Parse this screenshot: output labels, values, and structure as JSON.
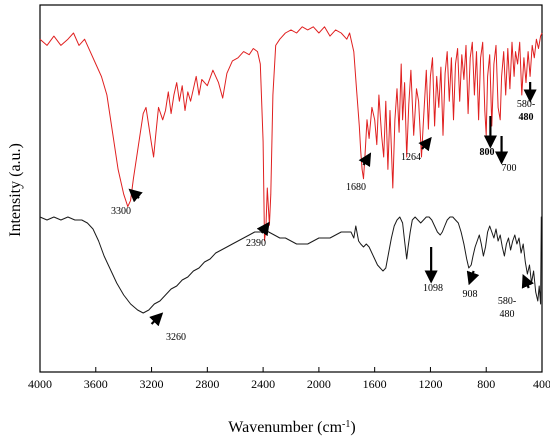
{
  "chart_data": {
    "type": "line",
    "title": "",
    "xlabel": "Wavenumber (cm",
    "xlabel_sup": "-1",
    "xlabel_close": ")",
    "ylabel": "Intensity (a.u.)",
    "xlim": [
      4000,
      400
    ],
    "x_reversed": true,
    "y_ticks_shown": false,
    "grid": false,
    "x_ticks": [
      4000,
      3600,
      3200,
      2800,
      2400,
      2000,
      1600,
      1200,
      800,
      400
    ],
    "x_tick_labels": [
      "4000",
      "3600",
      "3200",
      "2800",
      "2400",
      "2000",
      "1600",
      "1200",
      "800",
      "400"
    ],
    "series": [
      {
        "color": "#e02020",
        "points": [
          [
            4000,
            0.78
          ],
          [
            3950,
            0.76
          ],
          [
            3900,
            0.79
          ],
          [
            3850,
            0.76
          ],
          [
            3800,
            0.78
          ],
          [
            3760,
            0.8
          ],
          [
            3720,
            0.76
          ],
          [
            3680,
            0.78
          ],
          [
            3640,
            0.74
          ],
          [
            3600,
            0.7
          ],
          [
            3560,
            0.66
          ],
          [
            3520,
            0.6
          ],
          [
            3480,
            0.48
          ],
          [
            3440,
            0.36
          ],
          [
            3400,
            0.28
          ],
          [
            3370,
            0.24
          ],
          [
            3350,
            0.26
          ],
          [
            3330,
            0.33
          ],
          [
            3300,
            0.42
          ],
          [
            3280,
            0.48
          ],
          [
            3260,
            0.54
          ],
          [
            3240,
            0.56
          ],
          [
            3220,
            0.5
          ],
          [
            3200,
            0.44
          ],
          [
            3185,
            0.4
          ],
          [
            3170,
            0.47
          ],
          [
            3150,
            0.56
          ],
          [
            3120,
            0.52
          ],
          [
            3100,
            0.55
          ],
          [
            3080,
            0.61
          ],
          [
            3060,
            0.54
          ],
          [
            3040,
            0.6
          ],
          [
            3020,
            0.64
          ],
          [
            3000,
            0.58
          ],
          [
            2980,
            0.63
          ],
          [
            2960,
            0.55
          ],
          [
            2940,
            0.61
          ],
          [
            2920,
            0.58
          ],
          [
            2900,
            0.62
          ],
          [
            2880,
            0.66
          ],
          [
            2860,
            0.6
          ],
          [
            2840,
            0.65
          ],
          [
            2800,
            0.63
          ],
          [
            2760,
            0.68
          ],
          [
            2720,
            0.64
          ],
          [
            2690,
            0.59
          ],
          [
            2660,
            0.67
          ],
          [
            2620,
            0.71
          ],
          [
            2580,
            0.72
          ],
          [
            2540,
            0.74
          ],
          [
            2500,
            0.73
          ],
          [
            2470,
            0.75
          ],
          [
            2440,
            0.74
          ],
          [
            2420,
            0.7
          ],
          [
            2400,
            0.45
          ],
          [
            2390,
            0.13
          ],
          [
            2380,
            0.17
          ],
          [
            2370,
            0.3
          ],
          [
            2355,
            0.18
          ],
          [
            2345,
            0.28
          ],
          [
            2330,
            0.6
          ],
          [
            2310,
            0.76
          ],
          [
            2280,
            0.78
          ],
          [
            2240,
            0.8
          ],
          [
            2200,
            0.81
          ],
          [
            2160,
            0.8
          ],
          [
            2120,
            0.82
          ],
          [
            2080,
            0.81
          ],
          [
            2040,
            0.82
          ],
          [
            2000,
            0.8
          ],
          [
            1960,
            0.82
          ],
          [
            1920,
            0.79
          ],
          [
            1880,
            0.81
          ],
          [
            1840,
            0.8
          ],
          [
            1800,
            0.78
          ],
          [
            1780,
            0.8
          ],
          [
            1750,
            0.74
          ],
          [
            1730,
            0.62
          ],
          [
            1710,
            0.5
          ],
          [
            1700,
            0.42
          ],
          [
            1690,
            0.36
          ],
          [
            1680,
            0.33
          ],
          [
            1670,
            0.4
          ],
          [
            1655,
            0.52
          ],
          [
            1640,
            0.46
          ],
          [
            1620,
            0.56
          ],
          [
            1600,
            0.52
          ],
          [
            1585,
            0.44
          ],
          [
            1570,
            0.6
          ],
          [
            1550,
            0.47
          ],
          [
            1535,
            0.4
          ],
          [
            1520,
            0.58
          ],
          [
            1505,
            0.36
          ],
          [
            1490,
            0.55
          ],
          [
            1470,
            0.3
          ],
          [
            1455,
            0.52
          ],
          [
            1440,
            0.62
          ],
          [
            1425,
            0.48
          ],
          [
            1410,
            0.7
          ],
          [
            1400,
            0.52
          ],
          [
            1385,
            0.64
          ],
          [
            1370,
            0.4
          ],
          [
            1355,
            0.57
          ],
          [
            1340,
            0.68
          ],
          [
            1320,
            0.47
          ],
          [
            1300,
            0.62
          ],
          [
            1285,
            0.58
          ],
          [
            1264,
            0.4
          ],
          [
            1250,
            0.52
          ],
          [
            1230,
            0.68
          ],
          [
            1215,
            0.49
          ],
          [
            1200,
            0.66
          ],
          [
            1185,
            0.72
          ],
          [
            1170,
            0.5
          ],
          [
            1155,
            0.66
          ],
          [
            1140,
            0.56
          ],
          [
            1125,
            0.69
          ],
          [
            1110,
            0.47
          ],
          [
            1095,
            0.67
          ],
          [
            1080,
            0.74
          ],
          [
            1065,
            0.58
          ],
          [
            1050,
            0.72
          ],
          [
            1035,
            0.52
          ],
          [
            1020,
            0.7
          ],
          [
            1005,
            0.75
          ],
          [
            990,
            0.58
          ],
          [
            975,
            0.73
          ],
          [
            960,
            0.65
          ],
          [
            945,
            0.76
          ],
          [
            930,
            0.54
          ],
          [
            915,
            0.72
          ],
          [
            900,
            0.77
          ],
          [
            885,
            0.6
          ],
          [
            870,
            0.74
          ],
          [
            855,
            0.52
          ],
          [
            840,
            0.72
          ],
          [
            825,
            0.77
          ],
          [
            810,
            0.55
          ],
          [
            800,
            0.47
          ],
          [
            790,
            0.66
          ],
          [
            775,
            0.73
          ],
          [
            760,
            0.5
          ],
          [
            745,
            0.7
          ],
          [
            730,
            0.76
          ],
          [
            715,
            0.56
          ],
          [
            700,
            0.52
          ],
          [
            690,
            0.66
          ],
          [
            675,
            0.74
          ],
          [
            660,
            0.6
          ],
          [
            645,
            0.75
          ],
          [
            630,
            0.62
          ],
          [
            615,
            0.77
          ],
          [
            600,
            0.66
          ],
          [
            590,
            0.74
          ],
          [
            575,
            0.7
          ],
          [
            560,
            0.77
          ],
          [
            545,
            0.6
          ],
          [
            530,
            0.72
          ],
          [
            515,
            0.64
          ],
          [
            500,
            0.74
          ],
          [
            485,
            0.66
          ],
          [
            470,
            0.76
          ],
          [
            455,
            0.72
          ],
          [
            440,
            0.78
          ],
          [
            425,
            0.75
          ],
          [
            410,
            0.79
          ],
          [
            400,
            0.8
          ]
        ]
      },
      {
        "color": "#1a1a1a",
        "points": [
          [
            4000,
            0.05
          ],
          [
            3950,
            0.04
          ],
          [
            3900,
            0.05
          ],
          [
            3850,
            0.04
          ],
          [
            3800,
            0.05
          ],
          [
            3750,
            0.04
          ],
          [
            3700,
            0.04
          ],
          [
            3660,
            0.03
          ],
          [
            3620,
            0.01
          ],
          [
            3580,
            -0.03
          ],
          [
            3540,
            -0.08
          ],
          [
            3500,
            -0.12
          ],
          [
            3450,
            -0.17
          ],
          [
            3400,
            -0.21
          ],
          [
            3350,
            -0.24
          ],
          [
            3300,
            -0.26
          ],
          [
            3260,
            -0.27
          ],
          [
            3220,
            -0.26
          ],
          [
            3180,
            -0.24
          ],
          [
            3140,
            -0.23
          ],
          [
            3100,
            -0.21
          ],
          [
            3060,
            -0.19
          ],
          [
            3020,
            -0.18
          ],
          [
            2980,
            -0.16
          ],
          [
            2940,
            -0.15
          ],
          [
            2900,
            -0.13
          ],
          [
            2860,
            -0.12
          ],
          [
            2820,
            -0.1
          ],
          [
            2780,
            -0.09
          ],
          [
            2740,
            -0.07
          ],
          [
            2700,
            -0.06
          ],
          [
            2660,
            -0.05
          ],
          [
            2620,
            -0.04
          ],
          [
            2580,
            -0.03
          ],
          [
            2540,
            -0.02
          ],
          [
            2500,
            -0.01
          ],
          [
            2460,
            0.0
          ],
          [
            2420,
            0.0
          ],
          [
            2390,
            0.01
          ],
          [
            2360,
            0.0
          ],
          [
            2320,
            -0.01
          ],
          [
            2280,
            -0.02
          ],
          [
            2240,
            -0.02
          ],
          [
            2200,
            -0.03
          ],
          [
            2160,
            -0.04
          ],
          [
            2120,
            -0.04
          ],
          [
            2080,
            -0.04
          ],
          [
            2040,
            -0.03
          ],
          [
            2000,
            -0.02
          ],
          [
            1960,
            -0.02
          ],
          [
            1920,
            -0.02
          ],
          [
            1880,
            -0.01
          ],
          [
            1840,
            0.0
          ],
          [
            1800,
            0.0
          ],
          [
            1770,
            0.0
          ],
          [
            1750,
            -0.02
          ],
          [
            1735,
            0.02
          ],
          [
            1715,
            -0.03
          ],
          [
            1700,
            -0.04
          ],
          [
            1680,
            -0.05
          ],
          [
            1660,
            -0.04
          ],
          [
            1640,
            -0.05
          ],
          [
            1620,
            -0.07
          ],
          [
            1600,
            -0.09
          ],
          [
            1580,
            -0.11
          ],
          [
            1560,
            -0.12
          ],
          [
            1540,
            -0.13
          ],
          [
            1520,
            -0.12
          ],
          [
            1500,
            -0.07
          ],
          [
            1480,
            -0.02
          ],
          [
            1460,
            0.02
          ],
          [
            1440,
            0.04
          ],
          [
            1420,
            0.05
          ],
          [
            1400,
            0.03
          ],
          [
            1385,
            -0.03
          ],
          [
            1370,
            -0.09
          ],
          [
            1360,
            -0.05
          ],
          [
            1345,
            0.0
          ],
          [
            1330,
            0.04
          ],
          [
            1310,
            0.05
          ],
          [
            1290,
            0.04
          ],
          [
            1270,
            0.03
          ],
          [
            1250,
            0.04
          ],
          [
            1230,
            0.05
          ],
          [
            1210,
            0.05
          ],
          [
            1190,
            0.04
          ],
          [
            1170,
            0.02
          ],
          [
            1150,
            0.0
          ],
          [
            1130,
            -0.01
          ],
          [
            1115,
            0.0
          ],
          [
            1098,
            0.02
          ],
          [
            1080,
            0.04
          ],
          [
            1060,
            0.05
          ],
          [
            1040,
            0.05
          ],
          [
            1020,
            0.04
          ],
          [
            1000,
            0.03
          ],
          [
            980,
            0.0
          ],
          [
            960,
            -0.04
          ],
          [
            940,
            -0.09
          ],
          [
            925,
            -0.12
          ],
          [
            908,
            -0.11
          ],
          [
            895,
            -0.08
          ],
          [
            880,
            -0.05
          ],
          [
            865,
            -0.03
          ],
          [
            850,
            -0.01
          ],
          [
            835,
            -0.04
          ],
          [
            820,
            -0.08
          ],
          [
            805,
            -0.05
          ],
          [
            790,
            0.0
          ],
          [
            775,
            0.02
          ],
          [
            760,
            0.0
          ],
          [
            745,
            -0.02
          ],
          [
            730,
            0.01
          ],
          [
            715,
            -0.03
          ],
          [
            700,
            -0.01
          ],
          [
            685,
            -0.05
          ],
          [
            670,
            -0.08
          ],
          [
            655,
            -0.04
          ],
          [
            640,
            -0.02
          ],
          [
            625,
            -0.06
          ],
          [
            610,
            -0.03
          ],
          [
            595,
            -0.01
          ],
          [
            580,
            -0.04
          ],
          [
            565,
            -0.02
          ],
          [
            550,
            -0.07
          ],
          [
            535,
            -0.04
          ],
          [
            520,
            -0.1
          ],
          [
            505,
            -0.14
          ],
          [
            490,
            -0.11
          ],
          [
            475,
            -0.17
          ],
          [
            460,
            -0.13
          ],
          [
            445,
            -0.2
          ],
          [
            430,
            -0.23
          ],
          [
            420,
            -0.18
          ],
          [
            410,
            -0.24
          ],
          [
            405,
            0.05
          ],
          [
            400,
            0.05
          ]
        ]
      }
    ],
    "annotations": [
      {
        "series": 0,
        "text": "3300",
        "x": 3300
      },
      {
        "series": 0,
        "text": "2390",
        "x": 2390
      },
      {
        "series": 0,
        "text": "1680",
        "x": 1680
      },
      {
        "series": 0,
        "text": "1264",
        "x": 1264
      },
      {
        "series": 0,
        "text": "800",
        "x": 800
      },
      {
        "series": 0,
        "text": "700",
        "x": 700
      },
      {
        "series": 0,
        "text": "580-\n480",
        "x": 480
      },
      {
        "series": 1,
        "text": "3260",
        "x": 3260
      },
      {
        "series": 1,
        "text": "1098",
        "x": 1098
      },
      {
        "series": 1,
        "text": "908",
        "x": 908
      },
      {
        "series": 1,
        "text": "580-\n480",
        "x": 480
      }
    ]
  }
}
